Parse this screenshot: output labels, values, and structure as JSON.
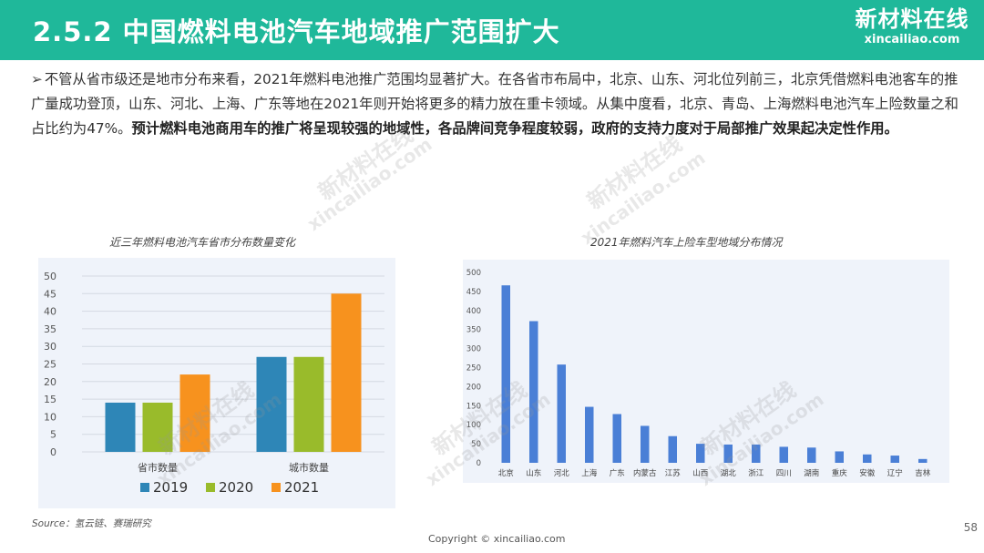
{
  "header": {
    "title": "2.5.2 中国燃料电池汽车地域推广范围扩大",
    "brand_cn": "新材料在线",
    "brand_en": "xincailiao.com"
  },
  "paragraph": {
    "marker": "➢",
    "text": "不管从省市级还是地市分布来看，2021年燃料电池推广范围均显著扩大。在各省市布局中，北京、山东、河北位列前三，北京凭借燃料电池客车的推广量成功登顶，山东、河北、上海、广东等地在2021年则开始将更多的精力放在重卡领域。从集中度看，北京、青岛、上海燃料电池汽车上险数量之和占比约为47%。",
    "bold_text": "预计燃料电池商用车的推广将呈现较强的地域性，各品牌间竞争程度较弱，政府的支持力度对于局部推广效果起决定性作用。"
  },
  "left_chart_title": "近三年燃料电池汽车省市分布数量变化",
  "right_chart_title": "2021年燃料汽车上险车型地域分布情况",
  "watermarks": {
    "cn": "新材料在线",
    "en": "xincailiao.com"
  },
  "chart_data": [
    {
      "type": "bar",
      "categories": [
        "省市数量",
        "城市数量"
      ],
      "series": [
        {
          "name": "2019",
          "values": [
            14,
            27
          ],
          "color": "#2e86b7"
        },
        {
          "name": "2020",
          "values": [
            14,
            27
          ],
          "color": "#99bb2b"
        },
        {
          "name": "2021",
          "values": [
            22,
            45
          ],
          "color": "#f7921e"
        }
      ],
      "title": "近三年燃料电池汽车省市分布数量变化",
      "ylim": [
        0,
        50
      ],
      "yticks": [
        "0",
        "5",
        "10",
        "15",
        "20",
        "25",
        "30",
        "35",
        "40",
        "45",
        "50"
      ],
      "grid": true,
      "legend": "bottom"
    },
    {
      "type": "bar",
      "categories": [
        "北京",
        "山东",
        "河北",
        "上海",
        "广东",
        "内蒙古",
        "江苏",
        "山西",
        "湖北",
        "浙江",
        "四川",
        "湖南",
        "重庆",
        "安徽",
        "辽宁",
        "吉林"
      ],
      "values": [
        466,
        372,
        258,
        147,
        128,
        97,
        70,
        50,
        48,
        48,
        42,
        40,
        30,
        22,
        19,
        10
      ],
      "color": "#4a7fd6",
      "title": "2021年燃料汽车上险车型地域分布情况",
      "ylim": [
        0,
        500
      ],
      "yticks": [
        "0",
        "50",
        "100",
        "150",
        "200",
        "250",
        "300",
        "350",
        "400",
        "450",
        "500"
      ],
      "grid": false
    }
  ],
  "source": "Source：氢云链、赛瑞研究",
  "copyright": "Copyright © xincailiao.com",
  "page_number": "58"
}
